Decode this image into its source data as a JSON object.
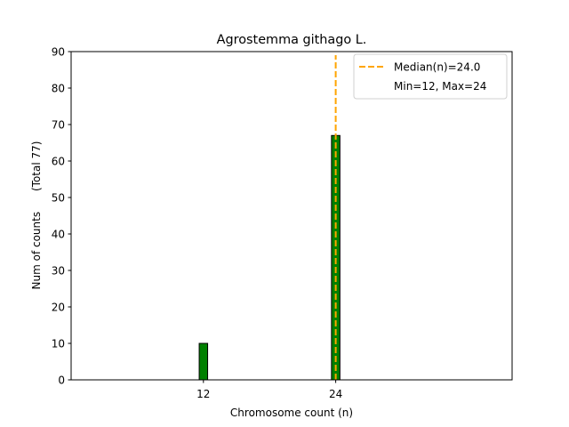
{
  "chart_data": {
    "type": "bar",
    "title": "Agrostemma githago L.",
    "xlabel": "Chromosome count (n)",
    "ylabel": "Num of counts      (Total 77)",
    "xlim": [
      0,
      40
    ],
    "ylim": [
      0,
      90
    ],
    "xticks": [
      12,
      24
    ],
    "yticks": [
      0,
      10,
      20,
      30,
      40,
      50,
      60,
      70,
      80,
      90
    ],
    "bars": [
      {
        "x": 12,
        "value": 10
      },
      {
        "x": 24,
        "value": 67
      }
    ],
    "bar_color": "#008000",
    "median_line": {
      "x": 24,
      "color": "#FFA500",
      "style": "dashed"
    },
    "legend": {
      "position": "top-right",
      "entries": [
        "Median(n)=24.0",
        "Min=12, Max=24"
      ]
    },
    "grid": false
  }
}
